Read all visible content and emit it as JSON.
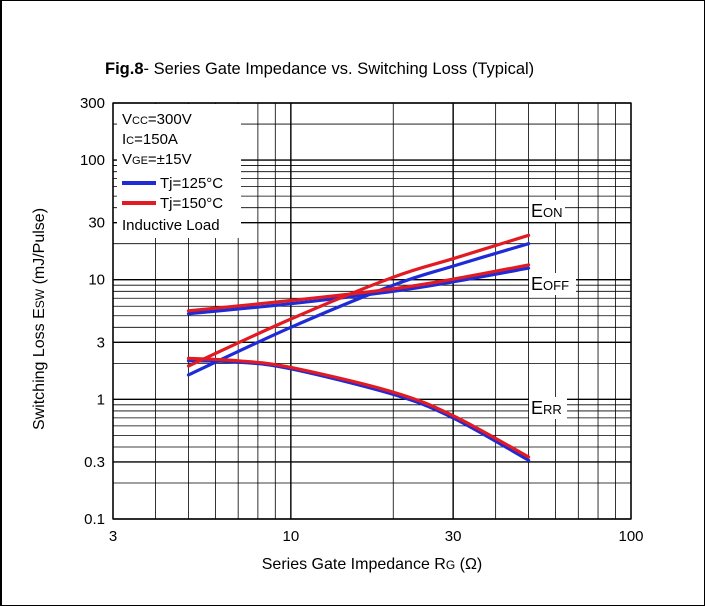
{
  "chart_data": {
    "type": "line",
    "title_bold": "Fig.8",
    "title_rest": "- Series Gate Impedance vs. Switching Loss  (Typical)",
    "xlabel_main": "Series Gate Impedance R",
    "xlabel_sub": "G",
    "xlabel_unit": " (Ω)",
    "ylabel_main": "Switching Loss E",
    "ylabel_sub": "SW",
    "ylabel_unit": " (mJ/Pulse)",
    "x_scale": "log",
    "y_scale": "log",
    "xlim": [
      3,
      100
    ],
    "ylim": [
      0.1,
      300
    ],
    "x_ticks": [
      3,
      10,
      30,
      100
    ],
    "x_tick_labels": [
      "3",
      "10",
      "30",
      "100"
    ],
    "y_ticks": [
      0.1,
      0.3,
      1,
      3,
      10,
      30,
      100,
      300
    ],
    "y_tick_labels": [
      "0.1",
      "0.3",
      "1",
      "3",
      "10",
      "30",
      "100",
      "300"
    ],
    "grid": true,
    "conditions": [
      {
        "main": "V",
        "sub": "CC",
        "rest": "=300V"
      },
      {
        "main": "I",
        "sub": "C",
        "rest": "=150A"
      },
      {
        "main": "V",
        "sub": "GE",
        "rest": "=±15V"
      }
    ],
    "legend": [
      {
        "label": "Tj=125°C",
        "color": "#1e2bd6"
      },
      {
        "label": "Tj=150°C",
        "color": "#e21b23"
      }
    ],
    "load_note": "Inductive Load",
    "curve_labels": [
      {
        "main": "E",
        "sub": "ON"
      },
      {
        "main": "E",
        "sub": "OFF"
      },
      {
        "main": "E",
        "sub": "RR"
      }
    ],
    "series": [
      {
        "curve": 0,
        "temp": 0,
        "x": [
          5,
          10,
          20,
          30,
          50
        ],
        "y": [
          1.6,
          4.0,
          9.0,
          13.0,
          20.0
        ]
      },
      {
        "curve": 0,
        "temp": 1,
        "x": [
          5,
          10,
          20,
          30,
          50
        ],
        "y": [
          1.9,
          4.7,
          10.5,
          15.0,
          23.5
        ]
      },
      {
        "curve": 1,
        "temp": 0,
        "x": [
          5,
          10,
          20,
          30,
          50
        ],
        "y": [
          5.2,
          6.3,
          8.0,
          9.6,
          12.5
        ]
      },
      {
        "curve": 1,
        "temp": 1,
        "x": [
          5,
          10,
          20,
          30,
          50
        ],
        "y": [
          5.5,
          6.7,
          8.4,
          10.1,
          13.3
        ]
      },
      {
        "curve": 2,
        "temp": 0,
        "x": [
          5,
          7,
          10,
          20,
          30,
          50
        ],
        "y": [
          2.1,
          2.05,
          1.8,
          1.1,
          0.7,
          0.31
        ]
      },
      {
        "curve": 2,
        "temp": 1,
        "x": [
          5,
          7,
          10,
          20,
          30,
          50
        ],
        "y": [
          2.2,
          2.1,
          1.85,
          1.15,
          0.73,
          0.33
        ]
      }
    ]
  }
}
